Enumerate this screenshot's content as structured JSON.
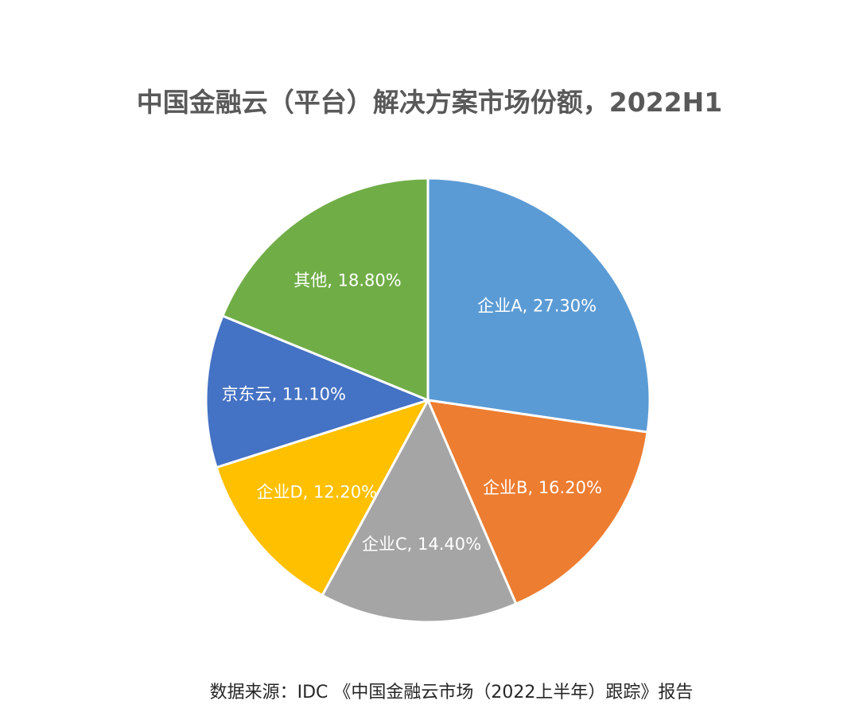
{
  "chart_data": {
    "type": "pie",
    "title": "中国金融云（平台）解决方案市场份额，2022H1",
    "categories": [
      "企业A",
      "企业B",
      "企业C",
      "企业D",
      "京东云",
      "其他"
    ],
    "values": [
      27.3,
      16.2,
      14.4,
      12.2,
      11.1,
      18.8
    ],
    "labels": [
      "企业A, 27.30%",
      "企业B, 16.20%",
      "企业C, 14.40%",
      "企业D, 12.20%",
      "京东云, 11.10%",
      "其他, 18.80%"
    ],
    "colors": [
      "#5B9BD5",
      "#ED7D31",
      "#A5A5A5",
      "#FFC000",
      "#4472C4",
      "#70AD47"
    ],
    "legend": "none",
    "source": "数据来源：IDC 《中国金融云市场（2022上半年）跟踪》报告"
  }
}
